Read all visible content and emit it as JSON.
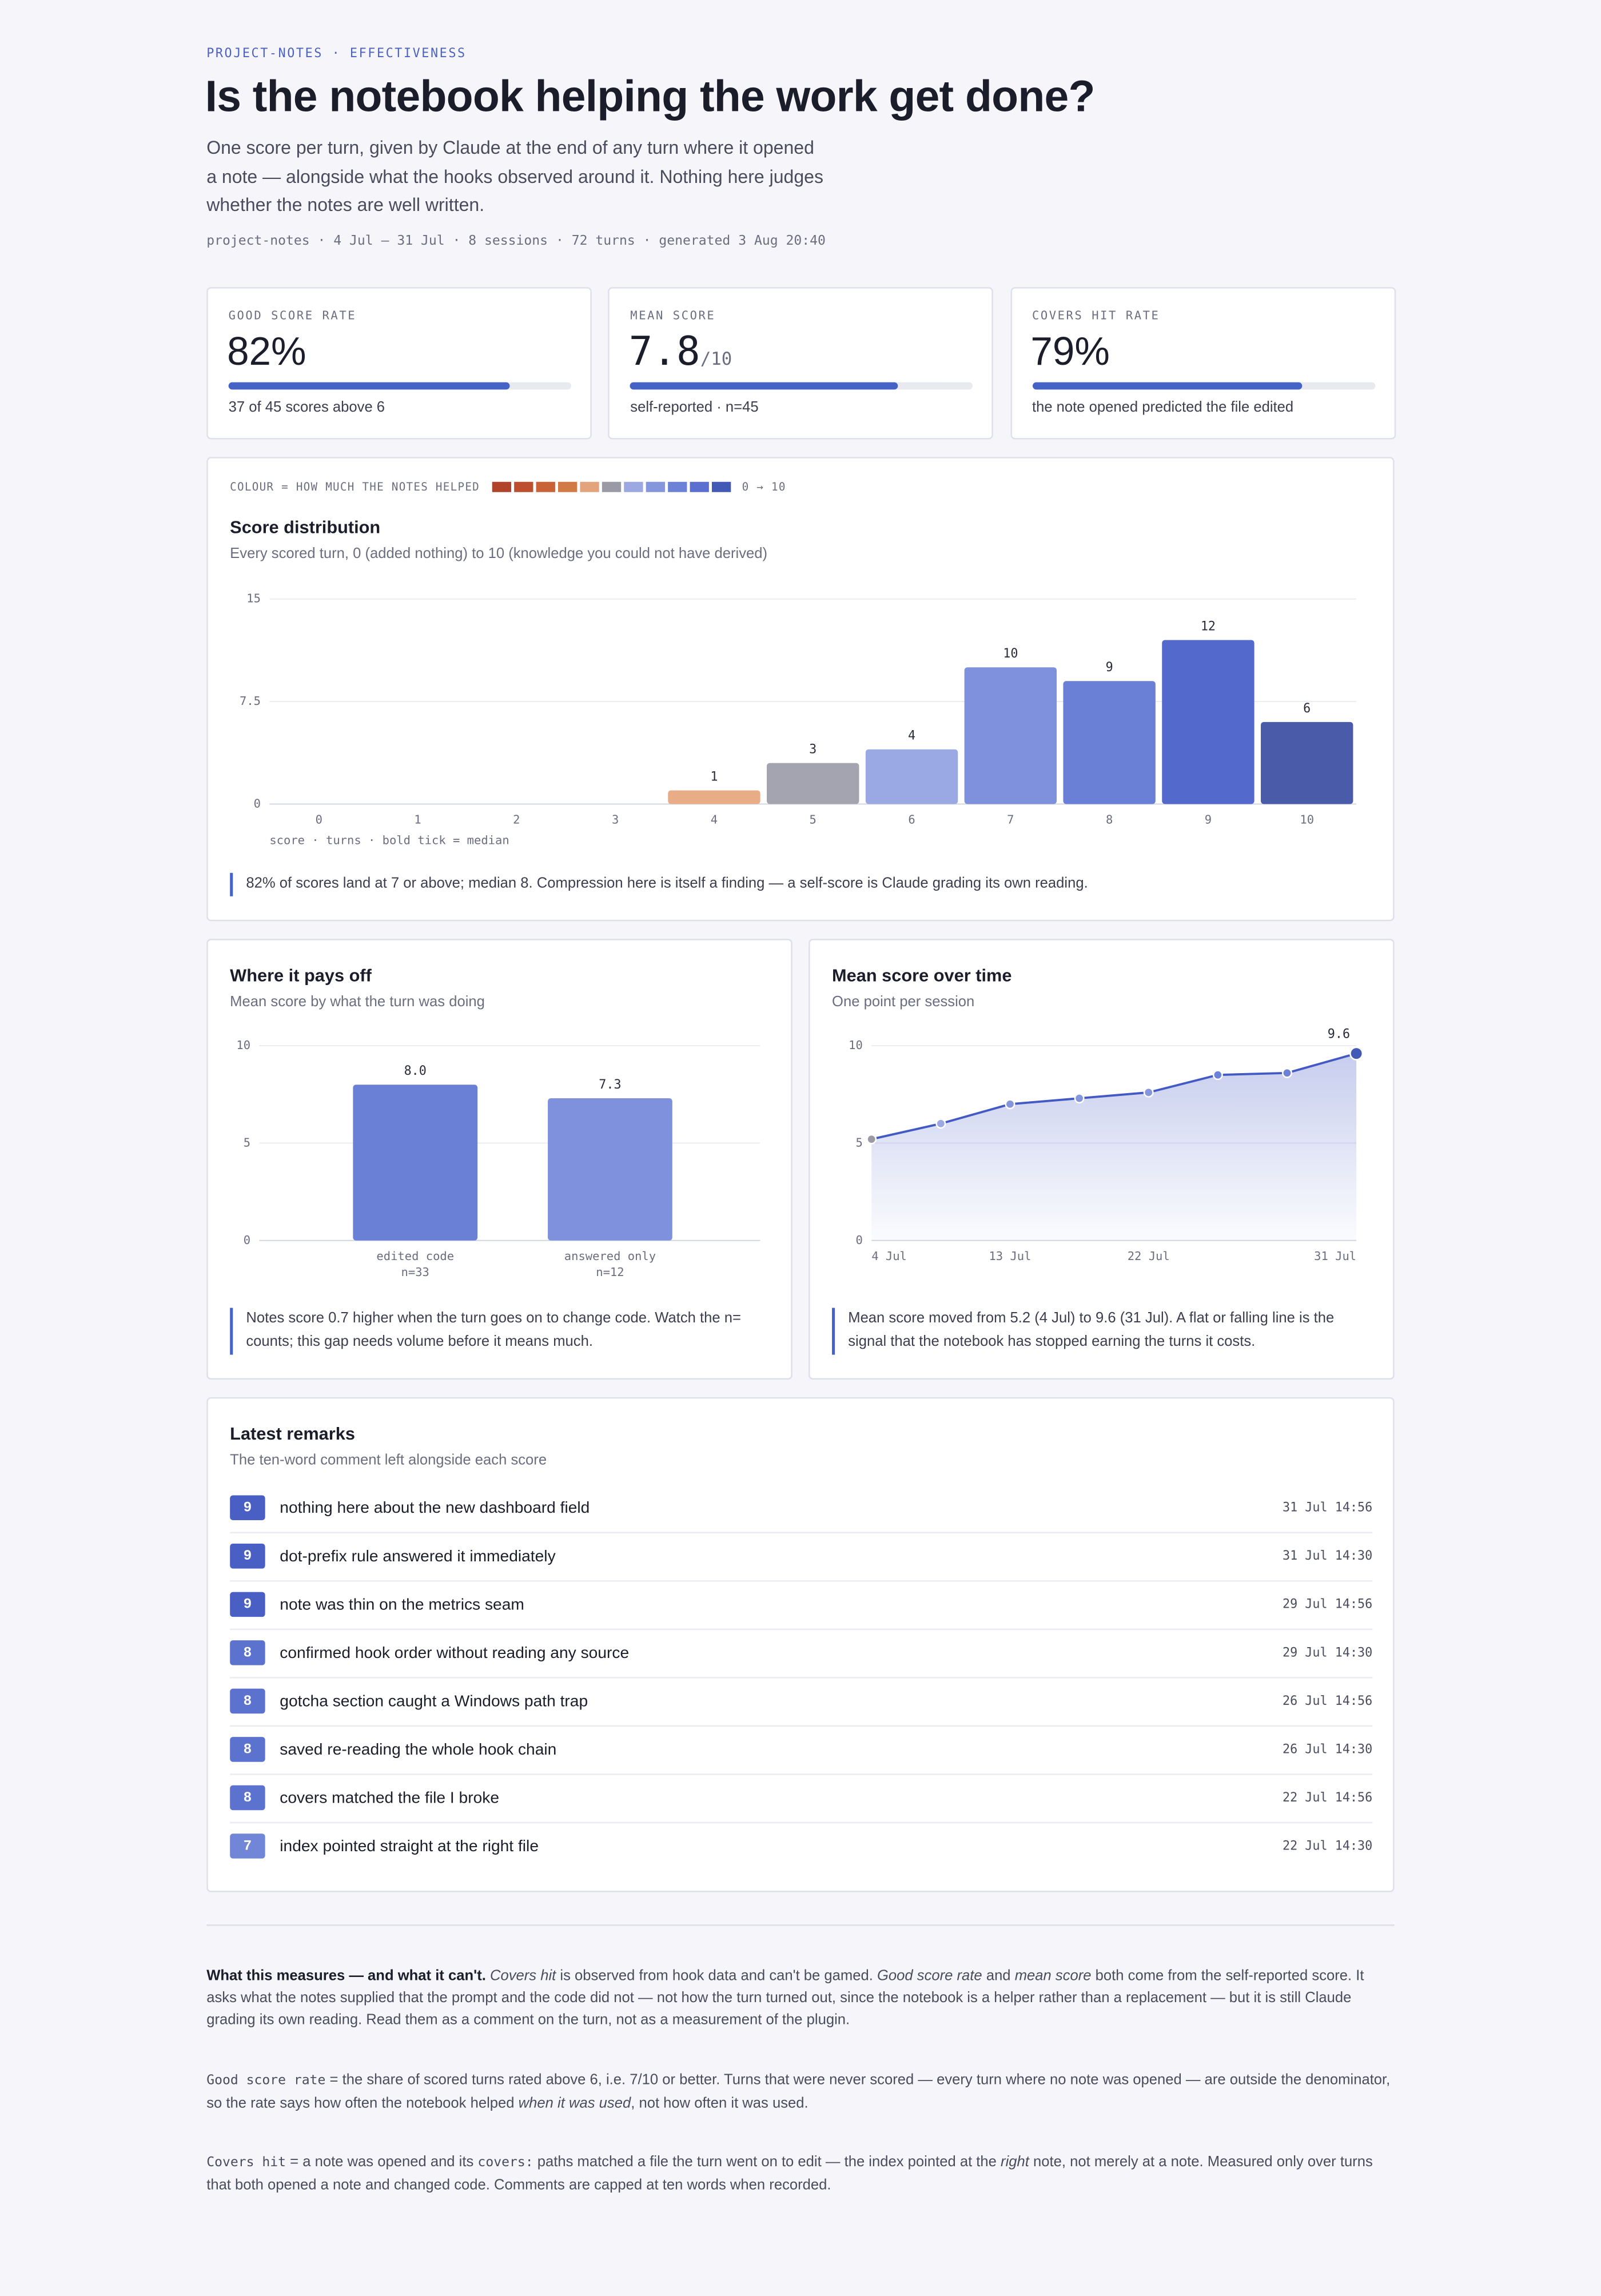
{
  "header": {
    "eyebrow": "PROJECT-NOTES · EFFECTIVENESS",
    "title": "Is the notebook helping the work get done?",
    "subtitle": "One score per turn, given by Claude at the end of any turn where it opened a note — alongside what the hooks observed around it. Nothing here judges whether the notes are well written.",
    "meta": "project-notes · 4 Jul – 31 Jul · 8 sessions · 72 turns · generated 3 Aug 20:40"
  },
  "kpis": [
    {
      "label": "GOOD SCORE RATE",
      "value": 82,
      "value_label": "82%",
      "range": [
        0,
        100
      ],
      "note": "37 of 45 scores above 6"
    },
    {
      "label": "MEAN SCORE",
      "value": 7.8,
      "out_of": {
        "value": 10,
        "label": "/10"
      },
      "range": [
        0,
        10
      ],
      "note": "self-reported · n=45"
    },
    {
      "label": "COVERS HIT RATE",
      "value": 79,
      "value_label": "79%",
      "range": [
        0,
        100
      ],
      "note": "the note opened predicted the file edited"
    }
  ],
  "legend_strip": {
    "label": "COLOUR = HOW MUCH THE NOTES HELPED",
    "range_label": "0 → 10",
    "scale_colors": [
      "#b0432a",
      "#bd4f2e",
      "#c96236",
      "#d27a45",
      "#e3a47c",
      "#9a9aa6",
      "#9ba8e2",
      "#8696dd",
      "#6d82d7",
      "#5a6fcf",
      "#4359b6"
    ]
  },
  "chart_data": [
    {
      "type": "bar",
      "title": "Score distribution",
      "subtitle": "Every scored turn, 0 (added nothing) to 10 (knowledge you could not have derived)",
      "categories": [
        "0",
        "1",
        "2",
        "3",
        "4",
        "5",
        "6",
        "7",
        "8",
        "9",
        "10"
      ],
      "values": [
        0,
        0,
        0,
        0,
        1,
        3,
        4,
        10,
        9,
        12,
        6
      ],
      "colors": [
        "#b0432a",
        "#bd4f2e",
        "#c96236",
        "#d27a45",
        "#e8ad86",
        "#a4a4b0",
        "#9aa8e3",
        "#7f91dd",
        "#6a7fd6",
        "#5369cc",
        "#4a5ca9"
      ],
      "ylim": [
        0,
        15
      ],
      "yticks": [
        0,
        7.5,
        15
      ],
      "grid": true,
      "axis_note": "score · turns · bold tick = median",
      "annotation": "82% of scores land at 7 or above; median 8. Compression here is itself a finding — a self-score is Claude grading its own reading."
    },
    {
      "type": "bar",
      "title": "Where it pays off",
      "subtitle": "Mean score by what the turn was doing",
      "categories": [
        "edited code",
        "answered only"
      ],
      "category_notes": [
        "n=33",
        "n=12"
      ],
      "values": [
        8.0,
        7.3
      ],
      "value_labels": [
        "8.0",
        "7.3"
      ],
      "colors": [
        "#6a7fd6",
        "#7f91dd"
      ],
      "ylim": [
        0,
        10
      ],
      "yticks": [
        0,
        5,
        10
      ],
      "grid": true,
      "annotation": "Notes score 0.7 higher when the turn goes on to change code. Watch the n= counts; this gap needs volume before it means much."
    },
    {
      "type": "line",
      "title": "Mean score over time",
      "subtitle": "One point per session",
      "categories": [
        "4 Jul",
        null,
        "13 Jul",
        null,
        "22 Jul",
        null,
        null,
        "31 Jul"
      ],
      "values": [
        5.2,
        6.0,
        7.0,
        7.3,
        7.6,
        8.5,
        8.6,
        9.6
      ],
      "value_labels": [
        null,
        null,
        null,
        null,
        null,
        null,
        null,
        "9.6"
      ],
      "color": "#4359c4",
      "point_colors": [
        "#9a9aa6",
        "#9ba8e2",
        "#8696dd",
        "#8696dd",
        "#8696dd",
        "#6d82d7",
        "#6d82d7",
        "#4359b6"
      ],
      "ylim": [
        0,
        10
      ],
      "yticks": [
        0,
        5,
        10
      ],
      "grid": true,
      "annotation": "Mean score moved from 5.2 (4 Jul) to 9.6 (31 Jul). A flat or falling line is the signal that the notebook has stopped earning the turns it costs."
    }
  ],
  "remarks": {
    "title": "Latest remarks",
    "subtitle": "The ten-word comment left alongside each score",
    "rows": [
      {
        "score": 9,
        "color": "#4a5fc4",
        "text": "nothing here about the new dashboard field",
        "time": "31 Jul 14:56"
      },
      {
        "score": 9,
        "color": "#4a5fc4",
        "text": "dot-prefix rule answered it immediately",
        "time": "31 Jul 14:30"
      },
      {
        "score": 9,
        "color": "#4a5fc4",
        "text": "note was thin on the metrics seam",
        "time": "29 Jul 14:56"
      },
      {
        "score": 8,
        "color": "#5c72cf",
        "text": "confirmed hook order without reading any source",
        "time": "29 Jul 14:30"
      },
      {
        "score": 8,
        "color": "#5c72cf",
        "text": "gotcha section caught a Windows path trap",
        "time": "26 Jul 14:56"
      },
      {
        "score": 8,
        "color": "#5c72cf",
        "text": "saved re-reading the whole hook chain",
        "time": "26 Jul 14:30"
      },
      {
        "score": 8,
        "color": "#5c72cf",
        "text": "covers matched the file I broke",
        "time": "22 Jul 14:56"
      },
      {
        "score": 7,
        "color": "#7186d6",
        "text": "index pointed straight at the right file",
        "time": "22 Jul 14:30"
      }
    ]
  },
  "footer": {
    "paragraphs": [
      [
        {
          "style": "b",
          "text": "What this measures — and what it can't."
        },
        {
          "style": "",
          "text": " "
        },
        {
          "style": "i",
          "text": "Covers hit"
        },
        {
          "style": "",
          "text": " is observed from hook data and can't be gamed. "
        },
        {
          "style": "i",
          "text": "Good score rate"
        },
        {
          "style": "",
          "text": " and "
        },
        {
          "style": "i",
          "text": "mean score"
        },
        {
          "style": "",
          "text": " both come from the self-reported score. It asks what the notes supplied that the prompt and the code did not — not how the turn turned out, since the notebook is a helper rather than a replacement — but it is still Claude grading its own reading. Read them as a comment on the turn, not as a measurement of the plugin."
        }
      ],
      [
        {
          "style": "code",
          "text": "Good score rate"
        },
        {
          "style": "",
          "text": " = the share of scored turns rated above 6, i.e. 7/10 or better. Turns that were never scored — every turn where no note was opened — are outside the denominator, so the rate says how often the notebook helped "
        },
        {
          "style": "i",
          "text": "when it was used"
        },
        {
          "style": "",
          "text": ", not how often it was used."
        }
      ],
      [
        {
          "style": "code",
          "text": "Covers hit"
        },
        {
          "style": "",
          "text": " = a note was opened and its "
        },
        {
          "style": "code",
          "text": "covers:"
        },
        {
          "style": "",
          "text": " paths matched a file the turn went on to edit — the index pointed at the "
        },
        {
          "style": "i",
          "text": "right"
        },
        {
          "style": "",
          "text": " note, not merely at a note. Measured only over turns that both opened a note and changed code. Comments are capped at ten words when recorded."
        }
      ]
    ]
  }
}
